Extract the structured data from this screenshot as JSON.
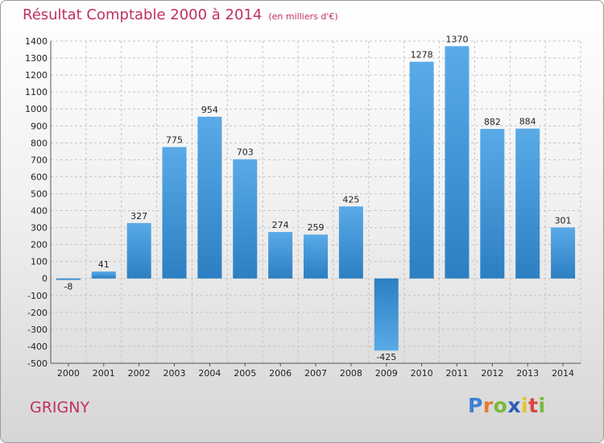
{
  "header": {
    "title": "Résultat Comptable 2000 à 2014",
    "subtitle": "(en milliers d'€)"
  },
  "place": "GRIGNY",
  "logo": {
    "letters": [
      "P",
      "r",
      "o",
      "x",
      "i",
      "t",
      "i"
    ],
    "colors": [
      "#3d7fd1",
      "#e8792a",
      "#7bb83a",
      "#2a5bb5",
      "#e8c12a",
      "#d8453c",
      "#7bb83a"
    ]
  },
  "colors": {
    "bar_top": "#5aaae8",
    "bar_bottom": "#2c7fc2",
    "text_accent": "#c0305c"
  },
  "chart_data": {
    "type": "bar",
    "title": "Résultat Comptable 2000 à 2014",
    "subtitle": "(en milliers d'€)",
    "categories": [
      "2000",
      "2001",
      "2002",
      "2003",
      "2004",
      "2005",
      "2006",
      "2007",
      "2008",
      "2009",
      "2010",
      "2011",
      "2012",
      "2013",
      "2014"
    ],
    "values": [
      -8,
      41,
      327,
      775,
      954,
      703,
      274,
      259,
      425,
      -425,
      1278,
      1370,
      882,
      884,
      301
    ],
    "ylim": [
      -500,
      1400
    ],
    "yticks": [
      1400,
      1300,
      1200,
      1100,
      1000,
      900,
      800,
      700,
      600,
      500,
      400,
      300,
      200,
      100,
      0,
      -100,
      -200,
      -300,
      -400,
      -500
    ],
    "grid": true,
    "xlabel": "",
    "ylabel": ""
  }
}
